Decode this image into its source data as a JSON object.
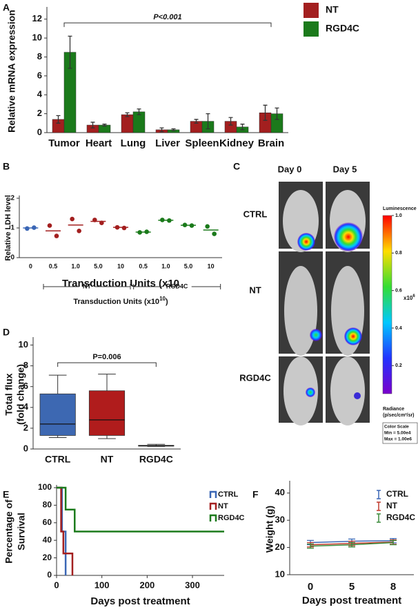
{
  "panel_c": {
    "panel": "C",
    "columns": [
      "Day 0",
      "Day 5"
    ],
    "rows": [
      "CTRL",
      "NT",
      "RGD4C"
    ],
    "colorbar_title": "Luminescence",
    "colorbar_lim": [
      0.05,
      1.0
    ],
    "colorbar_ticks": [
      0.2,
      0.4,
      0.6,
      0.8,
      {
        "value": 1,
        "label": "1.0"
      }
    ],
    "colorbar_unit": "x10",
    "colorbar_unit_sup": "6",
    "radiance": [
      "Radiance",
      "(p/sec/cm²/sr)"
    ],
    "color_scale": [
      "Color Scale",
      "Min = 5.00e4",
      "Max = 1.00e6"
    ]
  },
  "chart_data": [
    {
      "type": "bar",
      "panel": "A",
      "ylabel": "Relative mRNA expression",
      "categories": [
        "Tumor",
        "Heart",
        "Lung",
        "Liver",
        "Spleen",
        "Kidney",
        "Brain"
      ],
      "series": [
        {
          "name": "NT",
          "color": "#a31f1f",
          "values": [
            1.4,
            0.8,
            1.9,
            0.3,
            1.2,
            1.2,
            2.1
          ],
          "errors": [
            0.4,
            0.3,
            0.2,
            0.2,
            0.2,
            0.4,
            0.8
          ]
        },
        {
          "name": "RGD4C",
          "color": "#1b7a1b",
          "values": [
            8.5,
            0.8,
            2.2,
            0.3,
            1.2,
            0.6,
            2.0
          ],
          "errors": [
            1.7,
            0.1,
            0.3,
            0.1,
            0.8,
            0.3,
            0.6
          ]
        }
      ],
      "ylim": [
        0,
        13
      ],
      "yticks": [
        0,
        2,
        4,
        6,
        8,
        10,
        12
      ],
      "annotation": "P<0.001"
    },
    {
      "type": "dot",
      "panel": "B",
      "ylabel": "Relative LDH level",
      "xlabel": "Transduction Units (x10",
      "xlabel_sup": "10",
      "xlabel_end": ")",
      "categories": [
        "0",
        "0.5",
        "1.0",
        "5.0",
        "10",
        "0.5",
        "1.0",
        "5.0",
        "10"
      ],
      "series": [
        {
          "color": "#3a66b5",
          "values": [
            [
              0.98,
              1.01
            ],
            null,
            null,
            null,
            null,
            null,
            null,
            null,
            null
          ],
          "means": [
            1.0,
            null,
            null,
            null,
            null,
            null,
            null,
            null,
            null
          ]
        },
        {
          "name": "NT",
          "color": "#a31f1f",
          "values": [
            null,
            [
              1.08,
              0.73
            ],
            [
              1.3,
              0.9
            ],
            [
              1.27,
              1.17
            ],
            [
              1.02,
              1.0
            ],
            null,
            null,
            null,
            null
          ],
          "means": [
            null,
            0.9,
            1.1,
            1.22,
            1.02,
            null,
            null,
            null,
            null
          ]
        },
        {
          "name": "RGD4C",
          "color": "#1b7a1b",
          "values": [
            null,
            null,
            null,
            null,
            null,
            [
              0.85,
              0.87
            ],
            [
              1.27,
              1.25
            ],
            [
              1.1,
              1.08
            ],
            [
              1.05,
              0.8
            ]
          ],
          "means": [
            null,
            null,
            null,
            null,
            null,
            0.86,
            1.26,
            1.09,
            0.93
          ]
        }
      ],
      "ylim": [
        0,
        2
      ],
      "yticks": [
        0,
        1,
        2
      ]
    },
    {
      "type": "box",
      "panel": "D",
      "ylabel": [
        "Total flux",
        "(fold change)"
      ],
      "categories": [
        "CTRL",
        "NT",
        "RGD4C"
      ],
      "boxes": [
        {
          "min": 1.1,
          "q1": 1.3,
          "median": 2.4,
          "q3": 5.3,
          "max": 7.1,
          "color": "#3d68b2"
        },
        {
          "min": 1.0,
          "q1": 1.3,
          "median": 2.8,
          "q3": 5.6,
          "max": 7.2,
          "color": "#b01c1c"
        },
        {
          "min": 0.25,
          "q1": 0.28,
          "median": 0.3,
          "q3": 0.35,
          "max": 0.45,
          "color": "#1b7a1b"
        }
      ],
      "ylim": [
        0,
        10.5
      ],
      "yticks": [
        0,
        2,
        4,
        6,
        8,
        10
      ],
      "annotation": "P=0.006"
    },
    {
      "type": "step",
      "panel": "E",
      "ylabel": [
        "Percentage of",
        "Survival"
      ],
      "xlabel": "Days post treatment",
      "series": [
        {
          "name": "CTRL",
          "color": "#3a66b5",
          "x": [
            0,
            12,
            12,
            20,
            20
          ],
          "values": [
            100,
            100,
            50,
            50,
            0
          ]
        },
        {
          "name": "NT",
          "color": "#a31f1f",
          "x": [
            0,
            10,
            10,
            15,
            15,
            35,
            35
          ],
          "values": [
            100,
            100,
            50,
            50,
            25,
            25,
            0
          ]
        },
        {
          "name": "RGD4C",
          "color": "#1b7a1b",
          "x": [
            0,
            20,
            20,
            40,
            40,
            370
          ],
          "values": [
            100,
            100,
            75,
            75,
            50,
            50
          ]
        }
      ],
      "xlim": [
        0,
        370
      ],
      "xticks": [
        0,
        100,
        200,
        300
      ],
      "ylim": [
        0,
        100
      ],
      "yticks": [
        0,
        20,
        40,
        60,
        80,
        100
      ]
    },
    {
      "type": "line_error",
      "panel": "F",
      "ylabel": "Weight (g)",
      "xlabel": "Days post treatment",
      "categories": [
        "0",
        "5",
        "8"
      ],
      "series": [
        {
          "name": "CTRL",
          "color": "#3a66b5",
          "values": [
            21.8,
            22.3,
            22.5
          ],
          "errors": [
            0.8,
            0.8,
            0.8
          ]
        },
        {
          "name": "NT",
          "color": "#c0392b",
          "values": [
            21.0,
            21.5,
            22.0
          ],
          "errors": [
            0.8,
            0.8,
            0.8
          ]
        },
        {
          "name": "RGD4C",
          "color": "#3a8a3a",
          "values": [
            20.5,
            21.0,
            21.8
          ],
          "errors": [
            0.8,
            0.8,
            0.8
          ]
        }
      ],
      "ylim": [
        10,
        43.5
      ],
      "yticks": [
        10,
        20,
        30,
        40
      ]
    }
  ]
}
